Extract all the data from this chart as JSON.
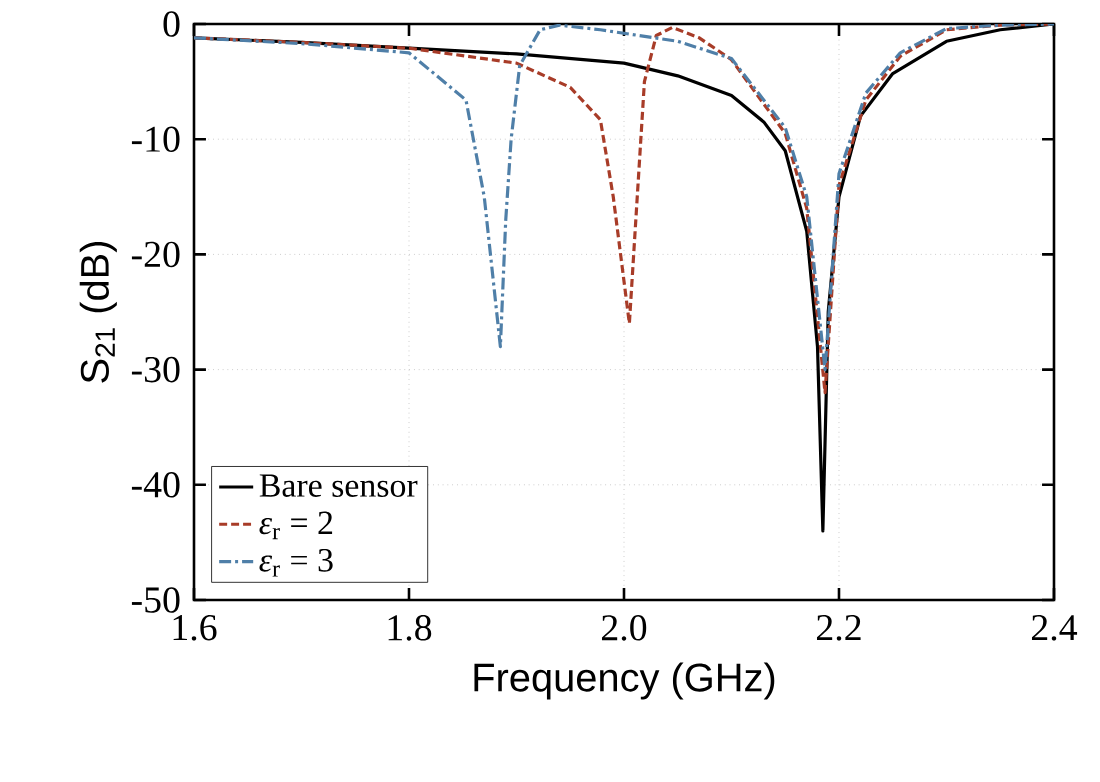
{
  "chart_data": {
    "type": "line",
    "xlabel": "Frequency (GHz)",
    "ylabel": "S$_{21}$ (dB)",
    "xlim": [
      1.6,
      2.4
    ],
    "xticks": [
      {
        "value": 1.6,
        "label": "1.6"
      },
      {
        "value": 1.8,
        "label": "1.8"
      },
      {
        "value": 2.0,
        "label": "2.0"
      },
      {
        "value": 2.2,
        "label": "2.2"
      },
      {
        "value": 2.4,
        "label": "2.4"
      }
    ],
    "ylim": [
      -50,
      0
    ],
    "yticks": [
      -50,
      -40,
      -30,
      -20,
      -10,
      0
    ],
    "grid": true,
    "legend": "bottom left",
    "marker": "none",
    "series": [
      {
        "name": "Bare sensor",
        "color": "#000000",
        "line_style": "solid",
        "x": [
          1.6,
          1.7,
          1.8,
          1.9,
          2.0,
          2.05,
          2.1,
          2.13,
          2.15,
          2.17,
          2.18,
          2.185,
          2.19,
          2.2,
          2.22,
          2.25,
          2.3,
          2.35,
          2.4
        ],
        "values": [
          -1.2,
          -1.6,
          -2.1,
          -2.6,
          -3.4,
          -4.5,
          -6.2,
          -8.5,
          -11,
          -18,
          -28,
          -44,
          -25,
          -15,
          -8,
          -4.3,
          -1.5,
          -0.5,
          0
        ]
      },
      {
        "name": "*ε*$_{r}$ = 2",
        "color": "#a83c28",
        "line_style": "dashed",
        "x": [
          1.6,
          1.7,
          1.8,
          1.9,
          1.95,
          1.978,
          1.99,
          2.005,
          2.019,
          2.03,
          2.045,
          2.07,
          2.1,
          2.15,
          2.17,
          2.187,
          2.2,
          2.225,
          2.257,
          2.3,
          2.35,
          2.4
        ],
        "values": [
          -1.2,
          -1.6,
          -2.1,
          -3.4,
          -5.5,
          -8.3,
          -15,
          -26,
          -5,
          -1,
          -0.3,
          -1.2,
          -3.1,
          -9.5,
          -16,
          -32,
          -14,
          -6.6,
          -2.8,
          -0.5,
          -0.1,
          0
        ]
      },
      {
        "name": "*ε*$_{r}$ = 3",
        "color": "#4f7fa8",
        "line_style": "dashdot",
        "x": [
          1.6,
          1.7,
          1.8,
          1.853,
          1.87,
          1.885,
          1.89,
          1.895,
          1.903,
          1.922,
          1.94,
          1.978,
          2.05,
          2.1,
          2.15,
          2.17,
          2.187,
          2.2,
          2.225,
          2.257,
          2.3,
          2.35,
          2.4
        ],
        "values": [
          -1.2,
          -1.7,
          -2.5,
          -6.6,
          -15,
          -28,
          -17,
          -10,
          -3.6,
          -0.5,
          -0.1,
          -0.5,
          -1.5,
          -3,
          -9,
          -15,
          -30,
          -13,
          -6,
          -2.5,
          -0.4,
          -0.1,
          0
        ]
      }
    ]
  }
}
